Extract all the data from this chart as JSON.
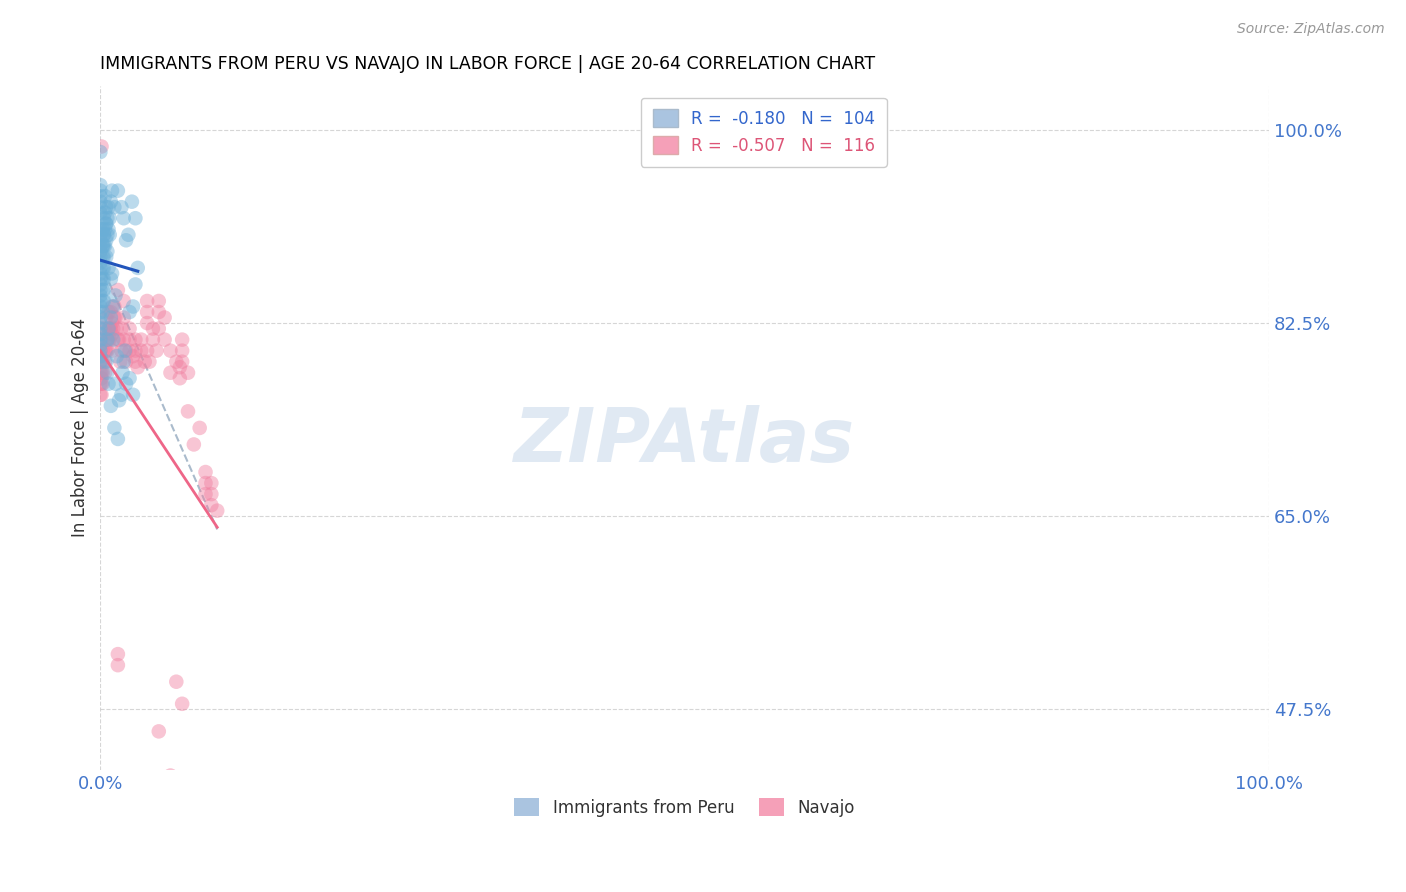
{
  "title": "IMMIGRANTS FROM PERU VS NAVAJO IN LABOR FORCE | AGE 20-64 CORRELATION CHART",
  "source": "Source: ZipAtlas.com",
  "ylabel": "In Labor Force | Age 20-64",
  "xlim": [
    0.0,
    1.0
  ],
  "ylim": [
    0.42,
    1.04
  ],
  "yticks": [
    0.475,
    0.65,
    0.825,
    1.0
  ],
  "ytick_labels": [
    "47.5%",
    "65.0%",
    "82.5%",
    "100.0%"
  ],
  "xtick_labels": [
    "0.0%",
    "100.0%"
  ],
  "xticks": [
    0.0,
    1.0
  ],
  "blue_color": "#6aaed6",
  "pink_color": "#f080a0",
  "trendline_blue": "#2255bb",
  "trendline_pink": "#ee6688",
  "trendline_dashed_color": "#aabbcc",
  "watermark": "ZIPAtlas",
  "peru_scatter": [
    [
      0.0,
      0.98
    ],
    [
      0.0,
      0.95
    ],
    [
      0.0,
      0.935
    ],
    [
      0.0,
      0.93
    ],
    [
      0.0,
      0.925
    ],
    [
      0.0,
      0.91
    ],
    [
      0.0,
      0.905
    ],
    [
      0.0,
      0.9
    ],
    [
      0.0,
      0.895
    ],
    [
      0.0,
      0.89
    ],
    [
      0.0,
      0.885
    ],
    [
      0.0,
      0.88
    ],
    [
      0.0,
      0.875
    ],
    [
      0.0,
      0.87
    ],
    [
      0.0,
      0.865
    ],
    [
      0.0,
      0.86
    ],
    [
      0.0,
      0.855
    ],
    [
      0.0,
      0.85
    ],
    [
      0.0,
      0.845
    ],
    [
      0.0,
      0.84
    ],
    [
      0.0,
      0.835
    ],
    [
      0.0,
      0.83
    ],
    [
      0.0,
      0.825
    ],
    [
      0.0,
      0.82
    ],
    [
      0.0,
      0.815
    ],
    [
      0.0,
      0.81
    ],
    [
      0.0,
      0.805
    ],
    [
      0.0,
      0.8
    ],
    [
      0.0,
      0.795
    ],
    [
      0.0,
      0.79
    ],
    [
      0.002,
      0.91
    ],
    [
      0.002,
      0.895
    ],
    [
      0.002,
      0.885
    ],
    [
      0.002,
      0.875
    ],
    [
      0.002,
      0.865
    ],
    [
      0.002,
      0.855
    ],
    [
      0.002,
      0.845
    ],
    [
      0.002,
      0.835
    ],
    [
      0.003,
      0.92
    ],
    [
      0.003,
      0.905
    ],
    [
      0.003,
      0.895
    ],
    [
      0.003,
      0.885
    ],
    [
      0.003,
      0.875
    ],
    [
      0.003,
      0.865
    ],
    [
      0.003,
      0.855
    ],
    [
      0.003,
      0.845
    ],
    [
      0.004,
      0.94
    ],
    [
      0.004,
      0.925
    ],
    [
      0.004,
      0.91
    ],
    [
      0.004,
      0.895
    ],
    [
      0.005,
      0.93
    ],
    [
      0.005,
      0.915
    ],
    [
      0.005,
      0.9
    ],
    [
      0.005,
      0.885
    ],
    [
      0.006,
      0.92
    ],
    [
      0.006,
      0.905
    ],
    [
      0.006,
      0.89
    ],
    [
      0.007,
      0.93
    ],
    [
      0.007,
      0.91
    ],
    [
      0.008,
      0.92
    ],
    [
      0.008,
      0.905
    ],
    [
      0.009,
      0.935
    ],
    [
      0.01,
      0.945
    ],
    [
      0.01,
      0.87
    ],
    [
      0.012,
      0.93
    ],
    [
      0.015,
      0.945
    ],
    [
      0.018,
      0.93
    ],
    [
      0.02,
      0.92
    ],
    [
      0.022,
      0.9
    ],
    [
      0.024,
      0.905
    ],
    [
      0.027,
      0.935
    ],
    [
      0.03,
      0.92
    ],
    [
      0.032,
      0.875
    ],
    [
      0.005,
      0.79
    ],
    [
      0.006,
      0.78
    ],
    [
      0.007,
      0.77
    ],
    [
      0.009,
      0.75
    ],
    [
      0.012,
      0.73
    ],
    [
      0.015,
      0.72
    ],
    [
      0.03,
      0.86
    ],
    [
      0.006,
      0.81
    ],
    [
      0.007,
      0.82
    ],
    [
      0.009,
      0.83
    ],
    [
      0.011,
      0.84
    ],
    [
      0.013,
      0.85
    ],
    [
      0.011,
      0.81
    ],
    [
      0.002,
      0.895
    ],
    [
      0.003,
      0.905
    ],
    [
      0.005,
      0.915
    ],
    [
      0.007,
      0.875
    ],
    [
      0.009,
      0.865
    ],
    [
      0.0,
      0.945
    ],
    [
      0.0,
      0.94
    ],
    [
      0.02,
      0.79
    ],
    [
      0.021,
      0.8
    ],
    [
      0.019,
      0.78
    ],
    [
      0.022,
      0.77
    ],
    [
      0.018,
      0.76
    ],
    [
      0.025,
      0.775
    ],
    [
      0.016,
      0.755
    ],
    [
      0.028,
      0.76
    ],
    [
      0.013,
      0.77
    ],
    [
      0.014,
      0.795
    ],
    [
      0.025,
      0.835
    ],
    [
      0.028,
      0.84
    ]
  ],
  "navajo_scatter": [
    [
      0.0,
      0.8
    ],
    [
      0.0,
      0.79
    ],
    [
      0.0,
      0.78
    ],
    [
      0.0,
      0.77
    ],
    [
      0.0,
      0.76
    ],
    [
      0.001,
      0.985
    ],
    [
      0.001,
      0.81
    ],
    [
      0.001,
      0.79
    ],
    [
      0.001,
      0.78
    ],
    [
      0.001,
      0.775
    ],
    [
      0.001,
      0.77
    ],
    [
      0.001,
      0.76
    ],
    [
      0.002,
      0.82
    ],
    [
      0.002,
      0.8
    ],
    [
      0.002,
      0.79
    ],
    [
      0.002,
      0.78
    ],
    [
      0.002,
      0.77
    ],
    [
      0.004,
      0.82
    ],
    [
      0.004,
      0.8
    ],
    [
      0.004,
      0.79
    ],
    [
      0.004,
      0.78
    ],
    [
      0.005,
      0.83
    ],
    [
      0.005,
      0.81
    ],
    [
      0.005,
      0.8
    ],
    [
      0.006,
      0.81
    ],
    [
      0.006,
      0.8
    ],
    [
      0.007,
      0.835
    ],
    [
      0.007,
      0.82
    ],
    [
      0.007,
      0.81
    ],
    [
      0.008,
      0.82
    ],
    [
      0.008,
      0.81
    ],
    [
      0.009,
      0.835
    ],
    [
      0.009,
      0.82
    ],
    [
      0.01,
      0.84
    ],
    [
      0.01,
      0.825
    ],
    [
      0.01,
      0.815
    ],
    [
      0.01,
      0.8
    ],
    [
      0.011,
      0.82
    ],
    [
      0.012,
      0.84
    ],
    [
      0.012,
      0.83
    ],
    [
      0.013,
      0.83
    ],
    [
      0.014,
      0.82
    ],
    [
      0.015,
      0.855
    ],
    [
      0.015,
      0.81
    ],
    [
      0.016,
      0.81
    ],
    [
      0.017,
      0.79
    ],
    [
      0.018,
      0.82
    ],
    [
      0.018,
      0.8
    ],
    [
      0.02,
      0.845
    ],
    [
      0.02,
      0.83
    ],
    [
      0.02,
      0.81
    ],
    [
      0.022,
      0.8
    ],
    [
      0.022,
      0.79
    ],
    [
      0.025,
      0.82
    ],
    [
      0.025,
      0.81
    ],
    [
      0.025,
      0.8
    ],
    [
      0.028,
      0.795
    ],
    [
      0.03,
      0.81
    ],
    [
      0.03,
      0.8
    ],
    [
      0.03,
      0.79
    ],
    [
      0.032,
      0.785
    ],
    [
      0.035,
      0.81
    ],
    [
      0.035,
      0.8
    ],
    [
      0.038,
      0.79
    ],
    [
      0.04,
      0.845
    ],
    [
      0.04,
      0.835
    ],
    [
      0.04,
      0.825
    ],
    [
      0.04,
      0.8
    ],
    [
      0.042,
      0.79
    ],
    [
      0.045,
      0.82
    ],
    [
      0.045,
      0.81
    ],
    [
      0.048,
      0.8
    ],
    [
      0.05,
      0.845
    ],
    [
      0.05,
      0.835
    ],
    [
      0.05,
      0.82
    ],
    [
      0.055,
      0.83
    ],
    [
      0.055,
      0.81
    ],
    [
      0.06,
      0.78
    ],
    [
      0.06,
      0.8
    ],
    [
      0.065,
      0.79
    ],
    [
      0.068,
      0.785
    ],
    [
      0.068,
      0.775
    ],
    [
      0.07,
      0.81
    ],
    [
      0.07,
      0.8
    ],
    [
      0.07,
      0.79
    ],
    [
      0.075,
      0.78
    ],
    [
      0.075,
      0.745
    ],
    [
      0.08,
      0.715
    ],
    [
      0.085,
      0.73
    ],
    [
      0.09,
      0.69
    ],
    [
      0.09,
      0.68
    ],
    [
      0.09,
      0.67
    ],
    [
      0.095,
      0.68
    ],
    [
      0.095,
      0.67
    ],
    [
      0.095,
      0.66
    ],
    [
      0.1,
      0.655
    ],
    [
      0.015,
      0.515
    ],
    [
      0.015,
      0.525
    ],
    [
      0.05,
      0.455
    ],
    [
      0.06,
      0.415
    ],
    [
      0.065,
      0.5
    ],
    [
      0.07,
      0.48
    ]
  ],
  "peru_trendline_x": [
    0.0,
    0.032
  ],
  "peru_trendline_y": [
    0.882,
    0.872
  ],
  "navajo_trendline_x": [
    0.0,
    0.1
  ],
  "navajo_trendline_y": [
    0.8,
    0.64
  ],
  "dashed_trendline_x": [
    0.0,
    0.1
  ],
  "dashed_trendline_y": [
    0.88,
    0.638
  ]
}
